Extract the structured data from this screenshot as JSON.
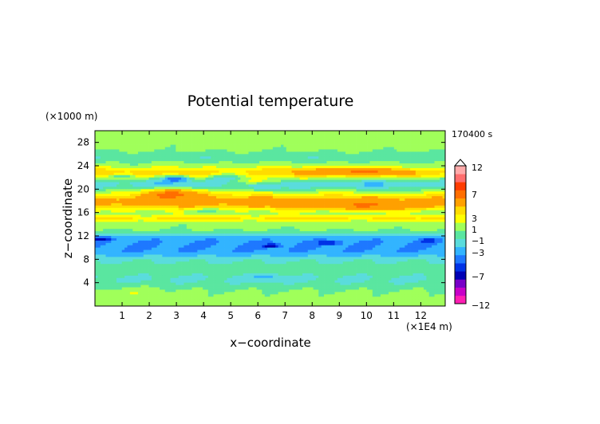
{
  "chart_data": {
    "type": "heatmap",
    "title": "Potential temperature",
    "time_label": "170400 s",
    "xlabel": "x−coordinate",
    "ylabel": "z−coordinate",
    "x_unit": "(×1E4 m)",
    "y_unit": "(×1000 m)",
    "xlim": [
      0,
      12.9
    ],
    "ylim": [
      0,
      30
    ],
    "x_ticks": [
      1,
      2,
      3,
      4,
      5,
      6,
      7,
      8,
      9,
      10,
      11,
      12
    ],
    "y_ticks": [
      4,
      8,
      12,
      16,
      20,
      24,
      28
    ],
    "colorbar": {
      "levels": [
        -12,
        -7,
        -3,
        -1,
        1,
        3,
        7,
        12
      ],
      "tick_labels": [
        "12",
        "7",
        "3",
        "1",
        "−1",
        "−3",
        "−7",
        "−12"
      ],
      "colors": [
        "#ff1eb4",
        "#c800c8",
        "#7800c8",
        "#0000b4",
        "#0032e6",
        "#1e78ff",
        "#32b4ff",
        "#5adcdc",
        "#5ae6a0",
        "#a0ff5a",
        "#ffff00",
        "#ffdc00",
        "#ffa000",
        "#ff6e00",
        "#ff3c00",
        "#ff6e6e",
        "#ffaaaa"
      ]
    }
  }
}
